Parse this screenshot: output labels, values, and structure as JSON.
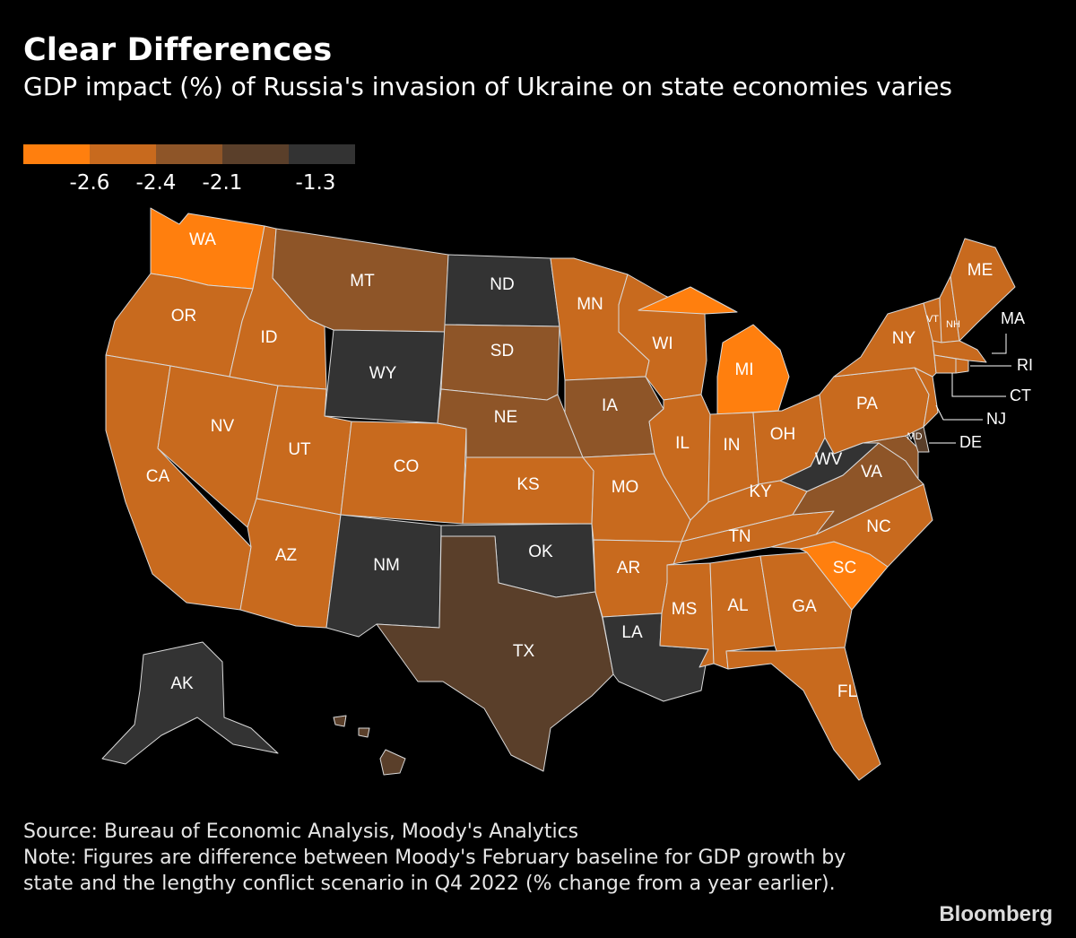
{
  "title": "Clear Differences",
  "subtitle": "GDP impact (%) of Russia's invasion of Ukraine on state economies varies",
  "legend": {
    "colors": [
      "#ff7f0e",
      "#c86a1e",
      "#8e5528",
      "#5a3f2a",
      "#333333"
    ],
    "ticks": [
      "-2.6",
      "-2.4",
      "-2.1",
      "-1.3"
    ]
  },
  "map": {
    "bins": {
      "b1": "#ff7f0e",
      "b2": "#c86a1e",
      "b3": "#8e5528",
      "b4": "#5a3f2a",
      "b5": "#333333"
    },
    "states": [
      {
        "abbr": "WA",
        "bin": "b1"
      },
      {
        "abbr": "OR",
        "bin": "b2"
      },
      {
        "abbr": "CA",
        "bin": "b2"
      },
      {
        "abbr": "NV",
        "bin": "b2"
      },
      {
        "abbr": "ID",
        "bin": "b2"
      },
      {
        "abbr": "MT",
        "bin": "b3"
      },
      {
        "abbr": "WY",
        "bin": "b5"
      },
      {
        "abbr": "UT",
        "bin": "b2"
      },
      {
        "abbr": "AZ",
        "bin": "b2"
      },
      {
        "abbr": "CO",
        "bin": "b2"
      },
      {
        "abbr": "NM",
        "bin": "b5"
      },
      {
        "abbr": "ND",
        "bin": "b5"
      },
      {
        "abbr": "SD",
        "bin": "b3"
      },
      {
        "abbr": "NE",
        "bin": "b3"
      },
      {
        "abbr": "KS",
        "bin": "b2"
      },
      {
        "abbr": "OK",
        "bin": "b5"
      },
      {
        "abbr": "TX",
        "bin": "b4"
      },
      {
        "abbr": "MN",
        "bin": "b2"
      },
      {
        "abbr": "IA",
        "bin": "b3"
      },
      {
        "abbr": "MO",
        "bin": "b2"
      },
      {
        "abbr": "AR",
        "bin": "b2"
      },
      {
        "abbr": "LA",
        "bin": "b5"
      },
      {
        "abbr": "WI",
        "bin": "b2"
      },
      {
        "abbr": "IL",
        "bin": "b2"
      },
      {
        "abbr": "MI",
        "bin": "b1"
      },
      {
        "abbr": "IN",
        "bin": "b2"
      },
      {
        "abbr": "OH",
        "bin": "b2"
      },
      {
        "abbr": "KY",
        "bin": "b2"
      },
      {
        "abbr": "TN",
        "bin": "b2"
      },
      {
        "abbr": "MS",
        "bin": "b2"
      },
      {
        "abbr": "AL",
        "bin": "b2"
      },
      {
        "abbr": "GA",
        "bin": "b2"
      },
      {
        "abbr": "FL",
        "bin": "b2"
      },
      {
        "abbr": "SC",
        "bin": "b1"
      },
      {
        "abbr": "NC",
        "bin": "b2"
      },
      {
        "abbr": "VA",
        "bin": "b3"
      },
      {
        "abbr": "WV",
        "bin": "b5"
      },
      {
        "abbr": "PA",
        "bin": "b2"
      },
      {
        "abbr": "NY",
        "bin": "b2"
      },
      {
        "abbr": "VT",
        "bin": "b2"
      },
      {
        "abbr": "NH",
        "bin": "b2"
      },
      {
        "abbr": "ME",
        "bin": "b2"
      },
      {
        "abbr": "MA",
        "bin": "b2"
      },
      {
        "abbr": "RI",
        "bin": "b2"
      },
      {
        "abbr": "CT",
        "bin": "b2"
      },
      {
        "abbr": "NJ",
        "bin": "b2"
      },
      {
        "abbr": "DE",
        "bin": "b4"
      },
      {
        "abbr": "MD",
        "bin": "b3"
      },
      {
        "abbr": "AK",
        "bin": "b5"
      },
      {
        "abbr": "HI",
        "bin": "b4"
      }
    ]
  },
  "source": "Source: Bureau of Economic Analysis, Moody's Analytics",
  "note": "Note: Figures are difference between Moody's February baseline for GDP growth by state and the lengthy conflict scenario in Q4 2022 (% change from a year earlier).",
  "brand": "Bloomberg"
}
